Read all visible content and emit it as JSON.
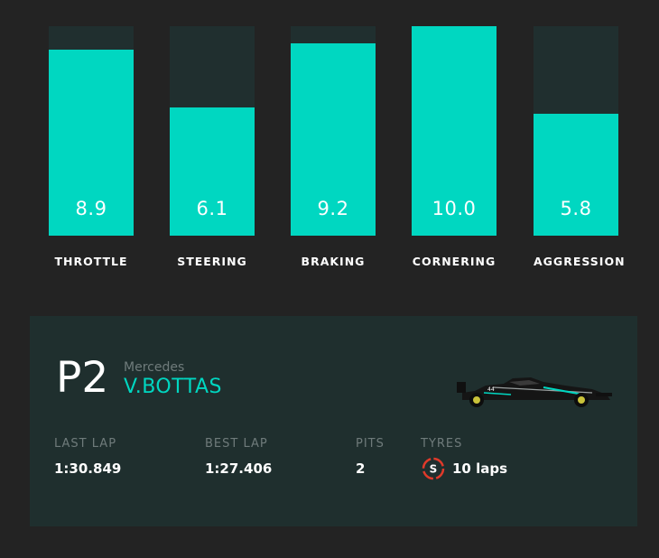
{
  "colors": {
    "accent": "#00d7c1",
    "bar_track": "#202f2f",
    "card_bg": "#1f2f2e",
    "tyre_soft": "#e03a2a"
  },
  "bars": [
    {
      "label": "THROTTLE",
      "value": "8.9",
      "level": 8.9
    },
    {
      "label": "STEERING",
      "value": "6.1",
      "level": 6.1
    },
    {
      "label": "BRAKING",
      "value": "9.2",
      "level": 9.2
    },
    {
      "label": "CORNERING",
      "value": "10.0",
      "level": 10.0
    },
    {
      "label": "AGGRESSION",
      "value": "5.8",
      "level": 5.8
    }
  ],
  "bar_max": 10,
  "driver": {
    "position": "P2",
    "team": "Mercedes",
    "name": "V.BOTTAS",
    "car_icon": "f1-car-icon"
  },
  "stats": {
    "last_lap_label": "LAST LAP",
    "last_lap": "1:30.849",
    "best_lap_label": "BEST LAP",
    "best_lap": "1:27.406",
    "pits_label": "PITS",
    "pits": "2",
    "tyres_label": "TYRES",
    "tyre_compound": "S",
    "tyre_laps": "10 laps",
    "tyre_icon": "soft-tyre-icon"
  }
}
